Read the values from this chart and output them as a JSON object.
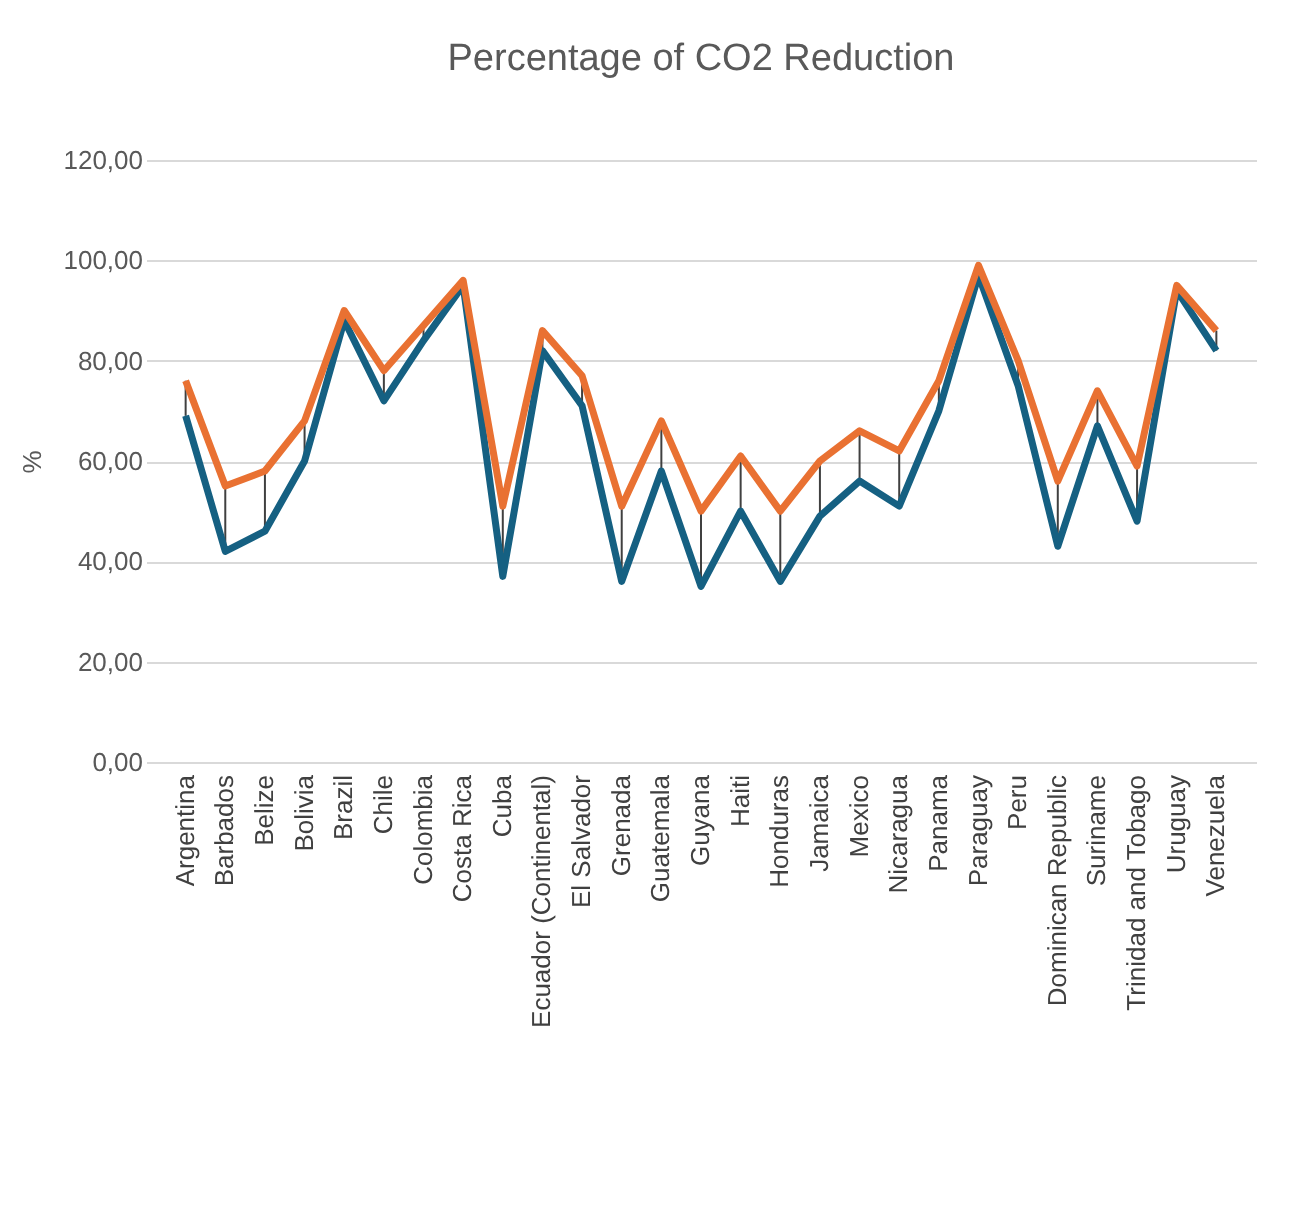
{
  "chart_data": {
    "type": "line",
    "title": "Percentage of CO2 Reduction",
    "ylabel": "%",
    "categories": [
      "Argentina",
      "Barbados",
      "Belize",
      "Bolivia",
      "Brazil",
      "Chile",
      "Colombia",
      "Costa Rica",
      "Cuba",
      "Ecuador (Continental)",
      "El Salvador",
      "Grenada",
      "Guatemala",
      "Guyana",
      "Haiti",
      "Honduras",
      "Jamaica",
      "Mexico",
      "Nicaragua",
      "Panama",
      "Paraguay",
      "Peru",
      "Dominican Republic",
      "Suriname",
      "Trinidad and Tobago",
      "Uruguay",
      "Venezuela"
    ],
    "series": [
      {
        "color": "#156082",
        "values": [
          69,
          42,
          46,
          60,
          88,
          72,
          84,
          95,
          37,
          82,
          71,
          36,
          58,
          35,
          50,
          36,
          49,
          56,
          51,
          70,
          97,
          75,
          43,
          67,
          48,
          94,
          82
        ]
      },
      {
        "color": "#e97132",
        "values": [
          76,
          55,
          58,
          68,
          90,
          78,
          87,
          96,
          51,
          86,
          77,
          51,
          68,
          50,
          61,
          50,
          60,
          66,
          62,
          76,
          99,
          80,
          56,
          74,
          59,
          95,
          86
        ]
      }
    ],
    "ylim": [
      0,
      120
    ],
    "yticks": [
      {
        "value": 0,
        "label": "0,00"
      },
      {
        "value": 20,
        "label": "20,00"
      },
      {
        "value": 40,
        "label": "40,00"
      },
      {
        "value": 60,
        "label": "60,00"
      },
      {
        "value": 80,
        "label": "80,00"
      },
      {
        "value": 100,
        "label": "100,00"
      },
      {
        "value": 120,
        "label": "120,00"
      }
    ],
    "grid": "y",
    "legend": false,
    "marker": "none",
    "line_style": "solid"
  }
}
